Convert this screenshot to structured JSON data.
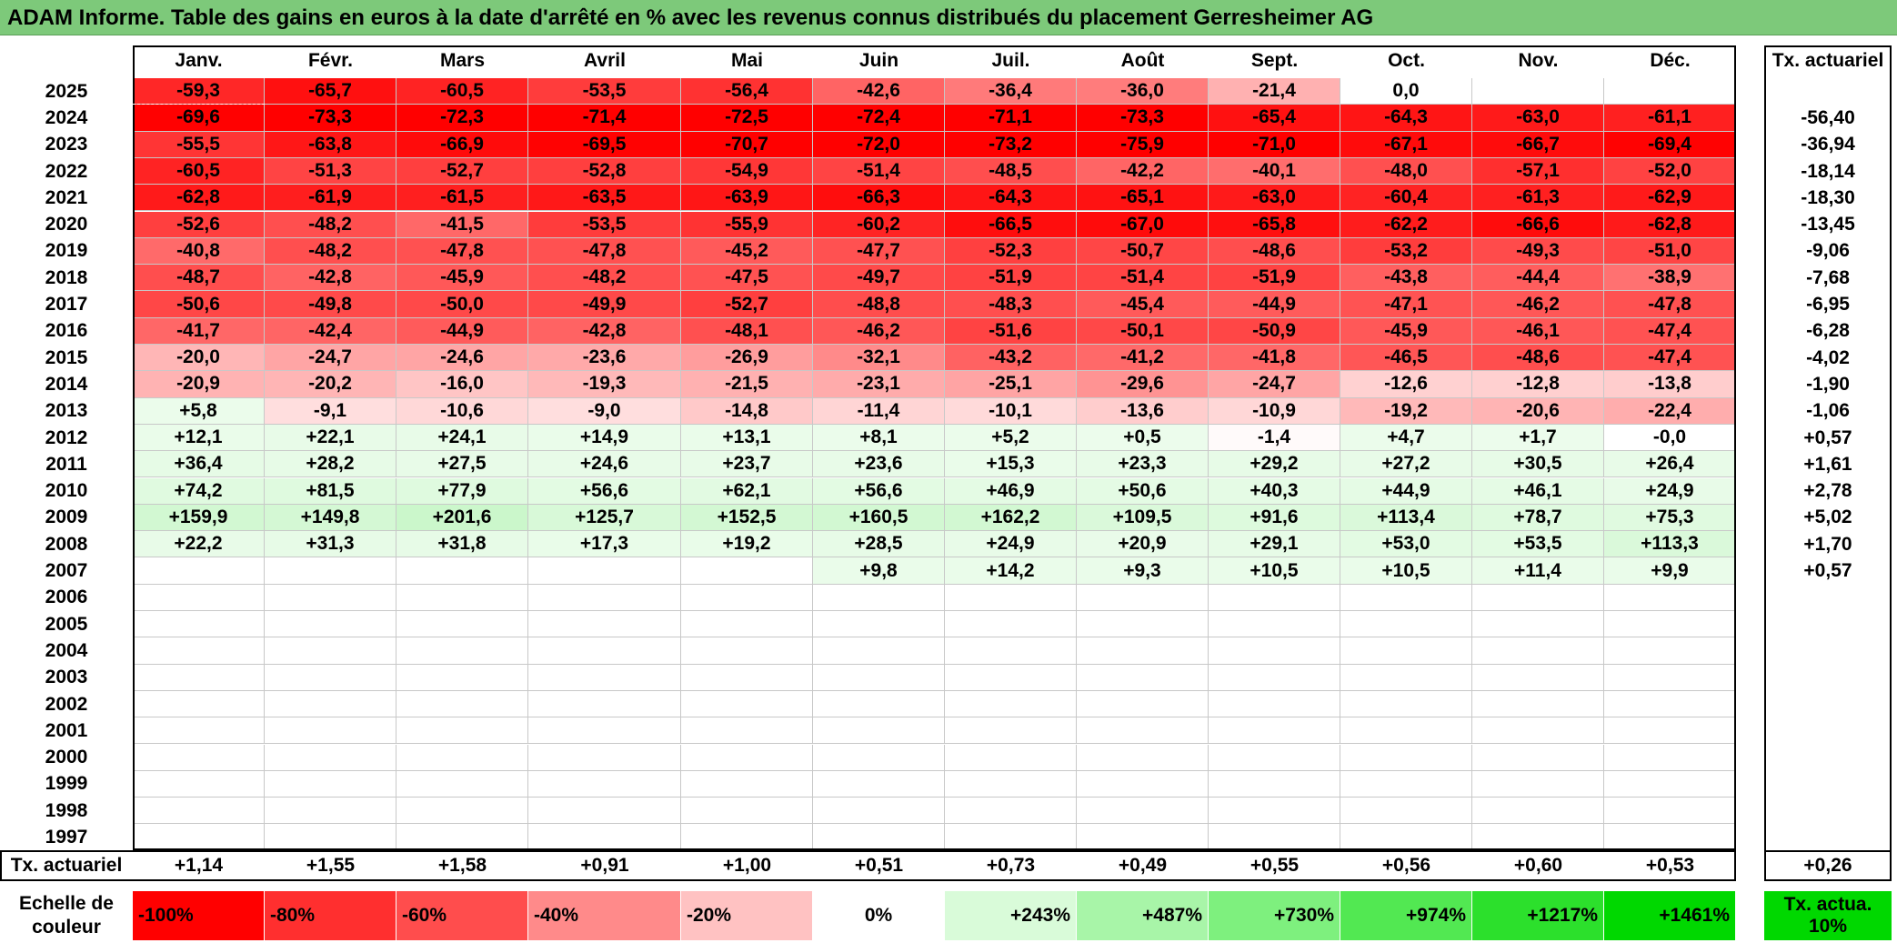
{
  "title": "ADAM Informe. Table des gains en euros à la date d'arrêté en % avec les revenus connus distribués du placement Gerresheimer AG",
  "months": [
    "Janv.",
    "Févr.",
    "Mars",
    "Avril",
    "Mai",
    "Juin",
    "Juil.",
    "Août",
    "Sept.",
    "Oct.",
    "Nov.",
    "Déc."
  ],
  "annual_header": "Tx. actuariel",
  "rows": [
    {
      "year": "2025",
      "values": [
        "-59,3",
        "-65,7",
        "-60,5",
        "-53,5",
        "-56,4",
        "-42,6",
        "-36,4",
        "-36,0",
        "-21,4",
        "0,0",
        "",
        ""
      ],
      "annual": ""
    },
    {
      "year": "2024",
      "values": [
        "-69,6",
        "-73,3",
        "-72,3",
        "-71,4",
        "-72,5",
        "-72,4",
        "-71,1",
        "-73,3",
        "-65,4",
        "-64,3",
        "-63,0",
        "-61,1"
      ],
      "annual": "-56,40"
    },
    {
      "year": "2023",
      "values": [
        "-55,5",
        "-63,8",
        "-66,9",
        "-69,5",
        "-70,7",
        "-72,0",
        "-73,2",
        "-75,9",
        "-71,0",
        "-67,1",
        "-66,7",
        "-69,4"
      ],
      "annual": "-36,94"
    },
    {
      "year": "2022",
      "values": [
        "-60,5",
        "-51,3",
        "-52,7",
        "-52,8",
        "-54,9",
        "-51,4",
        "-48,5",
        "-42,2",
        "-40,1",
        "-48,0",
        "-57,1",
        "-52,0"
      ],
      "annual": "-18,14"
    },
    {
      "year": "2021",
      "values": [
        "-62,8",
        "-61,9",
        "-61,5",
        "-63,5",
        "-63,9",
        "-66,3",
        "-64,3",
        "-65,1",
        "-63,0",
        "-60,4",
        "-61,3",
        "-62,9"
      ],
      "annual": "-18,30"
    },
    {
      "year": "2020",
      "values": [
        "-52,6",
        "-48,2",
        "-41,5",
        "-53,5",
        "-55,9",
        "-60,2",
        "-66,5",
        "-67,0",
        "-65,8",
        "-62,2",
        "-66,6",
        "-62,8"
      ],
      "annual": "-13,45"
    },
    {
      "year": "2019",
      "values": [
        "-40,8",
        "-48,2",
        "-47,8",
        "-47,8",
        "-45,2",
        "-47,7",
        "-52,3",
        "-50,7",
        "-48,6",
        "-53,2",
        "-49,3",
        "-51,0"
      ],
      "annual": "-9,06"
    },
    {
      "year": "2018",
      "values": [
        "-48,7",
        "-42,8",
        "-45,9",
        "-48,2",
        "-47,5",
        "-49,7",
        "-51,9",
        "-51,4",
        "-51,9",
        "-43,8",
        "-44,4",
        "-38,9"
      ],
      "annual": "-7,68"
    },
    {
      "year": "2017",
      "values": [
        "-50,6",
        "-49,8",
        "-50,0",
        "-49,9",
        "-52,7",
        "-48,8",
        "-48,3",
        "-45,4",
        "-44,9",
        "-47,1",
        "-46,2",
        "-47,8"
      ],
      "annual": "-6,95"
    },
    {
      "year": "2016",
      "values": [
        "-41,7",
        "-42,4",
        "-44,9",
        "-42,8",
        "-48,1",
        "-46,2",
        "-51,6",
        "-50,1",
        "-50,9",
        "-45,9",
        "-46,1",
        "-47,4"
      ],
      "annual": "-6,28"
    },
    {
      "year": "2015",
      "values": [
        "-20,0",
        "-24,7",
        "-24,6",
        "-23,6",
        "-26,9",
        "-32,1",
        "-43,2",
        "-41,2",
        "-41,8",
        "-46,5",
        "-48,6",
        "-47,4"
      ],
      "annual": "-4,02"
    },
    {
      "year": "2014",
      "values": [
        "-20,9",
        "-20,2",
        "-16,0",
        "-19,3",
        "-21,5",
        "-23,1",
        "-25,1",
        "-29,6",
        "-24,7",
        "-12,6",
        "-12,8",
        "-13,8"
      ],
      "annual": "-1,90"
    },
    {
      "year": "2013",
      "values": [
        "+5,8",
        "-9,1",
        "-10,6",
        "-9,0",
        "-14,8",
        "-11,4",
        "-10,1",
        "-13,6",
        "-10,9",
        "-19,2",
        "-20,6",
        "-22,4"
      ],
      "annual": "-1,06"
    },
    {
      "year": "2012",
      "values": [
        "+12,1",
        "+22,1",
        "+24,1",
        "+14,9",
        "+13,1",
        "+8,1",
        "+5,2",
        "+0,5",
        "-1,4",
        "+4,7",
        "+1,7",
        "-0,0"
      ],
      "annual": "+0,57"
    },
    {
      "year": "2011",
      "values": [
        "+36,4",
        "+28,2",
        "+27,5",
        "+24,6",
        "+23,7",
        "+23,6",
        "+15,3",
        "+23,3",
        "+29,2",
        "+27,2",
        "+30,5",
        "+26,4"
      ],
      "annual": "+1,61"
    },
    {
      "year": "2010",
      "values": [
        "+74,2",
        "+81,5",
        "+77,9",
        "+56,6",
        "+62,1",
        "+56,6",
        "+46,9",
        "+50,6",
        "+40,3",
        "+44,9",
        "+46,1",
        "+24,9"
      ],
      "annual": "+2,78"
    },
    {
      "year": "2009",
      "values": [
        "+159,9",
        "+149,8",
        "+201,6",
        "+125,7",
        "+152,5",
        "+160,5",
        "+162,2",
        "+109,5",
        "+91,6",
        "+113,4",
        "+78,7",
        "+75,3"
      ],
      "annual": "+5,02"
    },
    {
      "year": "2008",
      "values": [
        "+22,2",
        "+31,3",
        "+31,8",
        "+17,3",
        "+19,2",
        "+28,5",
        "+24,9",
        "+20,9",
        "+29,1",
        "+53,0",
        "+53,5",
        "+113,3"
      ],
      "annual": "+1,70"
    },
    {
      "year": "2007",
      "values": [
        "",
        "",
        "",
        "",
        "",
        "+9,8",
        "+14,2",
        "+9,3",
        "+10,5",
        "+10,5",
        "+11,4",
        "+9,9"
      ],
      "annual": "+0,57"
    },
    {
      "year": "2006",
      "values": [
        "",
        "",
        "",
        "",
        "",
        "",
        "",
        "",
        "",
        "",
        "",
        ""
      ],
      "annual": ""
    },
    {
      "year": "2005",
      "values": [
        "",
        "",
        "",
        "",
        "",
        "",
        "",
        "",
        "",
        "",
        "",
        ""
      ],
      "annual": ""
    },
    {
      "year": "2004",
      "values": [
        "",
        "",
        "",
        "",
        "",
        "",
        "",
        "",
        "",
        "",
        "",
        ""
      ],
      "annual": ""
    },
    {
      "year": "2003",
      "values": [
        "",
        "",
        "",
        "",
        "",
        "",
        "",
        "",
        "",
        "",
        "",
        ""
      ],
      "annual": ""
    },
    {
      "year": "2002",
      "values": [
        "",
        "",
        "",
        "",
        "",
        "",
        "",
        "",
        "",
        "",
        "",
        ""
      ],
      "annual": ""
    },
    {
      "year": "2001",
      "values": [
        "",
        "",
        "",
        "",
        "",
        "",
        "",
        "",
        "",
        "",
        "",
        ""
      ],
      "annual": ""
    },
    {
      "year": "2000",
      "values": [
        "",
        "",
        "",
        "",
        "",
        "",
        "",
        "",
        "",
        "",
        "",
        ""
      ],
      "annual": ""
    },
    {
      "year": "1999",
      "values": [
        "",
        "",
        "",
        "",
        "",
        "",
        "",
        "",
        "",
        "",
        "",
        ""
      ],
      "annual": ""
    },
    {
      "year": "1998",
      "values": [
        "",
        "",
        "",
        "",
        "",
        "",
        "",
        "",
        "",
        "",
        "",
        ""
      ],
      "annual": ""
    },
    {
      "year": "1997",
      "values": [
        "",
        "",
        "",
        "",
        "",
        "",
        "",
        "",
        "",
        "",
        "",
        ""
      ],
      "annual": ""
    }
  ],
  "footer": {
    "label": "Tx. actuariel",
    "values": [
      "+1,14",
      "+1,55",
      "+1,58",
      "+0,91",
      "+1,00",
      "+0,51",
      "+0,73",
      "+0,49",
      "+0,55",
      "+0,56",
      "+0,60",
      "+0,53"
    ],
    "annual": "+0,26"
  },
  "legend": {
    "label": "Echelle de couleur",
    "items": [
      {
        "text": "-100%",
        "color": "#ff0000"
      },
      {
        "text": "-80%",
        "color": "#ff2f2f"
      },
      {
        "text": "-60%",
        "color": "#ff4d4d"
      },
      {
        "text": "-40%",
        "color": "#ff8a8a"
      },
      {
        "text": "-20%",
        "color": "#ffc2c2"
      },
      {
        "text": "0%",
        "color": "#ffffff"
      },
      {
        "text": "+243%",
        "color": "#d9fbd9"
      },
      {
        "text": "+487%",
        "color": "#a8f5a8"
      },
      {
        "text": "+730%",
        "color": "#7ef07e"
      },
      {
        "text": "+974%",
        "color": "#52e852"
      },
      {
        "text": "+1217%",
        "color": "#2ce02c"
      },
      {
        "text": "+1461%",
        "color": "#00d800"
      }
    ],
    "annual_text": "Tx. actua. 10%",
    "annual_color": "#00d800"
  },
  "colors": {
    "title_background": "#7dc97a",
    "negative_max": "#ff0000",
    "positive_light": "#ecfcec"
  }
}
